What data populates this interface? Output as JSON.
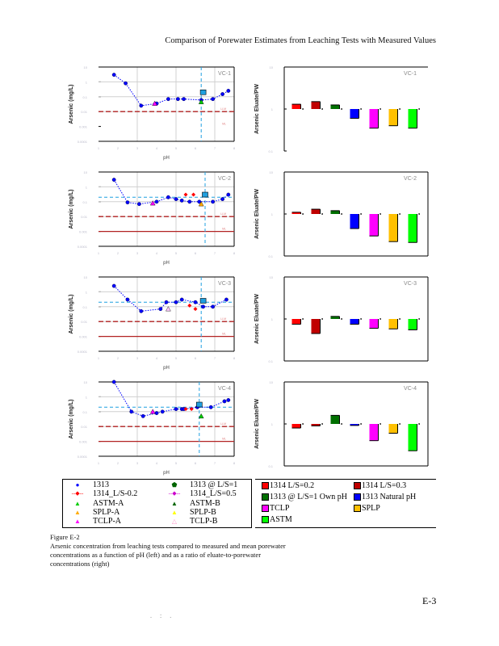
{
  "header": {
    "title": "Comparison of Porewater Estimates from Leaching Tests with Measured Values"
  },
  "chart_data": [
    {
      "type": "scatter",
      "panel": "VC-1",
      "title": "VC-1",
      "xlabel": "pH",
      "ylabel": "Arsenic (mg/L)",
      "yscale": "log",
      "xlim": [
        1,
        8
      ],
      "ylim": [
        0.0001,
        10
      ],
      "grid": true,
      "ref_lines": [
        {
          "name": "LLM",
          "value": 0.01,
          "style": "dashed",
          "color": "#b22222"
        },
        {
          "name": "ML",
          "value": 0.001,
          "style": "solid",
          "color": "#b22222",
          "shown": false
        }
      ],
      "measured_ph": 6.3,
      "series": [
        {
          "name": "1313",
          "x": [
            1.8,
            2.4,
            3.2,
            4.0,
            4.6,
            5.1,
            5.4,
            6.3,
            6.9,
            7.4,
            7.7
          ],
          "y": [
            3.0,
            0.8,
            0.025,
            0.035,
            0.07,
            0.07,
            0.07,
            0.06,
            0.07,
            0.15,
            0.25
          ]
        },
        {
          "name": "TCLP-A",
          "x": [
            3.9
          ],
          "y": [
            0.035
          ]
        },
        {
          "name": "1313 @ L/S=1",
          "x": [
            6.4
          ],
          "y": [
            0.2
          ]
        },
        {
          "name": "ASTM-A",
          "x": [
            6.3
          ],
          "y": [
            0.045
          ]
        }
      ]
    },
    {
      "type": "bar",
      "panel": "VC-1",
      "title": "VC-1",
      "ylabel": "Arsenic Eluate/PW",
      "yscale": "log",
      "ylim": [
        0.1,
        10
      ],
      "categories": [
        "1314 L/S=0.2",
        "1314 L/S=0.3",
        "1313 @ L/S=1 Own pH",
        "1313 Natural pH",
        "TCLP",
        "SPLP",
        "ASTM"
      ],
      "values": [
        1.3,
        1.5,
        1.25,
        0.6,
        0.35,
        0.4,
        0.35
      ]
    },
    {
      "type": "scatter",
      "panel": "VC-2",
      "title": "VC-2",
      "xlabel": "pH",
      "ylabel": "Arsenic (mg/L)",
      "yscale": "log",
      "xlim": [
        1,
        8
      ],
      "ylim": [
        0.0001,
        10
      ],
      "grid": true,
      "ref_lines": [
        {
          "name": "LLM",
          "value": 0.01,
          "style": "dashed",
          "color": "#b22222"
        },
        {
          "name": "ML",
          "value": 0.001,
          "style": "solid",
          "color": "#b22222"
        }
      ],
      "mean_porewater": 0.2,
      "measured_ph": 6.5,
      "series": [
        {
          "name": "1313",
          "x": [
            1.8,
            2.5,
            3.1,
            4.0,
            4.6,
            5.0,
            5.3,
            5.7,
            6.2,
            6.9,
            7.4,
            7.7
          ],
          "y": [
            3.0,
            0.09,
            0.07,
            0.1,
            0.2,
            0.15,
            0.12,
            0.1,
            0.1,
            0.1,
            0.15,
            0.3
          ]
        },
        {
          "name": "1314_L/S-0.2",
          "x": [
            5.5,
            5.9
          ],
          "y": [
            0.3,
            0.3
          ]
        },
        {
          "name": "TCLP-A",
          "x": [
            3.8
          ],
          "y": [
            0.08
          ]
        },
        {
          "name": "SPLP-A",
          "x": [
            6.3
          ],
          "y": [
            0.07
          ]
        },
        {
          "name": "1313 @ L/S=1",
          "x": [
            6.5
          ],
          "y": [
            0.3
          ]
        }
      ]
    },
    {
      "type": "bar",
      "panel": "VC-2",
      "title": "VC-2",
      "ylabel": "Arsenic Eluate/PW",
      "yscale": "log",
      "ylim": [
        0.1,
        10
      ],
      "categories": [
        "1314 L/S=0.2",
        "1314 L/S=0.3",
        "1313 @ L/S=1 Own pH",
        "1313 Natural pH",
        "TCLP",
        "SPLP",
        "ASTM"
      ],
      "values": [
        1.1,
        1.3,
        1.2,
        0.45,
        0.3,
        0.22,
        0.21
      ]
    },
    {
      "type": "scatter",
      "panel": "VC-3",
      "title": "VC-3",
      "xlabel": "pH",
      "ylabel": "Arsenic (mg/L)",
      "yscale": "log",
      "xlim": [
        1,
        8
      ],
      "ylim": [
        0.0001,
        10
      ],
      "grid": true,
      "ref_lines": [
        {
          "name": "LLM",
          "value": 0.01,
          "style": "dashed",
          "color": "#b22222"
        },
        {
          "name": "ML",
          "value": 0.001,
          "style": "solid",
          "color": "#b22222"
        }
      ],
      "mean_porewater": 0.2,
      "measured_ph": 6.3,
      "series": [
        {
          "name": "1313",
          "x": [
            1.8,
            2.5,
            3.2,
            4.2,
            4.5,
            5.0,
            5.3,
            6.0,
            6.4,
            6.9,
            7.6
          ],
          "y": [
            2.5,
            0.3,
            0.05,
            0.07,
            0.2,
            0.2,
            0.3,
            0.2,
            0.1,
            0.1,
            0.3
          ]
        },
        {
          "name": "1314_L/S-0.2",
          "x": [
            5.7,
            6.0
          ],
          "y": [
            0.12,
            0.07
          ]
        },
        {
          "name": "TCLP-B",
          "x": [
            4.6
          ],
          "y": [
            0.07
          ]
        },
        {
          "name": "1313 @ L/S=1",
          "x": [
            6.4
          ],
          "y": [
            0.25
          ]
        }
      ]
    },
    {
      "type": "bar",
      "panel": "VC-3",
      "title": "VC-3",
      "ylabel": "Arsenic Eluate/PW",
      "yscale": "log",
      "ylim": [
        0.1,
        10
      ],
      "categories": [
        "1314 L/S=0.2",
        "1314 L/S=0.3",
        "1313 @ L/S=1 Own pH",
        "1313 Natural pH",
        "TCLP",
        "SPLP",
        "ASTM"
      ],
      "values": [
        0.75,
        0.45,
        1.15,
        0.75,
        0.6,
        0.58,
        0.55
      ]
    },
    {
      "type": "scatter",
      "panel": "VC-4",
      "title": "VC-4",
      "xlabel": "pH",
      "ylabel": "Arsenic (mg/L)",
      "yscale": "log",
      "xlim": [
        1,
        8
      ],
      "ylim": [
        0.0001,
        10
      ],
      "grid": true,
      "ref_lines": [
        {
          "name": "LLM",
          "value": 0.01,
          "style": "dashed",
          "color": "#b22222"
        },
        {
          "name": "ML",
          "value": 0.001,
          "style": "solid",
          "color": "#b22222"
        }
      ],
      "mean_porewater": 0.2,
      "measured_ph": 6.2,
      "series": [
        {
          "name": "1313",
          "x": [
            1.8,
            2.7,
            3.3,
            4.0,
            4.3,
            5.0,
            5.3,
            5.4,
            6.1,
            6.8,
            7.5,
            7.7
          ],
          "y": [
            10,
            0.1,
            0.05,
            0.08,
            0.1,
            0.15,
            0.15,
            0.15,
            0.2,
            0.2,
            0.5,
            0.6
          ]
        },
        {
          "name": "1314_L/S-0.2",
          "x": [
            5.5,
            5.8
          ],
          "y": [
            0.15,
            0.15
          ]
        },
        {
          "name": "TCLP-A",
          "x": [
            3.8
          ],
          "y": [
            0.1
          ]
        },
        {
          "name": "ASTM-A",
          "x": [
            6.3
          ],
          "y": [
            0.05
          ]
        },
        {
          "name": "1313 @ L/S=1",
          "x": [
            6.2
          ],
          "y": [
            0.3
          ]
        }
      ]
    },
    {
      "type": "bar",
      "panel": "VC-4",
      "title": "VC-4",
      "ylabel": "Arsenic Eluate/PW",
      "yscale": "log",
      "ylim": [
        0.1,
        10
      ],
      "categories": [
        "1314 L/S=0.2",
        "1314 L/S=0.3",
        "1313 @ L/S=1 Own pH",
        "1313 Natural pH",
        "TCLP",
        "SPLP",
        "ASTM"
      ],
      "values": [
        0.8,
        0.9,
        1.6,
        0.92,
        0.4,
        0.6,
        0.23
      ]
    }
  ],
  "legend_left": [
    {
      "label": "1313",
      "symbol": "●",
      "color": "#0000ff"
    },
    {
      "label": "1313 @ L/S=1",
      "symbol": "⬟",
      "color": "#006400"
    },
    {
      "label": "1314_L/S-0.2",
      "symbol": "◆",
      "color": "#ff0000",
      "dashed": true
    },
    {
      "label": "1314_L/S=0.5",
      "symbol": "◆",
      "color": "#cc00cc",
      "dashed": true
    },
    {
      "label": "ASTM-A",
      "symbol": "▲",
      "color": "#00cc00"
    },
    {
      "label": "ASTM-B",
      "symbol": "▲",
      "color": "#006400"
    },
    {
      "label": "SPLP-A",
      "symbol": "▲",
      "color": "#ffaa00"
    },
    {
      "label": "SPLP-B",
      "symbol": "▲",
      "color": "#ffff00"
    },
    {
      "label": "TCLP-A",
      "symbol": "▲",
      "color": "#ff00ff"
    },
    {
      "label": "TCLP-B",
      "symbol": "△",
      "color": "#ff99cc"
    }
  ],
  "legend_right": [
    {
      "label": "1314 L/S=0.2",
      "color": "#ff0000"
    },
    {
      "label": "1314 L/S=0.3",
      "color": "#c00000"
    },
    {
      "label": "1313 @ L/S=1 Own pH",
      "color": "#007000"
    },
    {
      "label": "1313 Natural pH",
      "color": "#0000ff"
    },
    {
      "label": "TCLP",
      "color": "#ff00ff"
    },
    {
      "label": "SPLP",
      "color": "#ffc000"
    },
    {
      "label": "ASTM",
      "color": "#00ff00"
    }
  ],
  "caption": {
    "figure_label": "Figure E-2",
    "text": "Arsenic concentration from leaching tests compared to measured and mean porewater concentrations as a function of pH (left) and as a ratio of eluate-to-porewater concentrations (right)"
  },
  "page_number": "E-3",
  "colors": {
    "grid": "#d0d0d0",
    "ref_line": "#b22222",
    "mean_line": "#1fa0e0",
    "series_1313": "#0000ff"
  }
}
